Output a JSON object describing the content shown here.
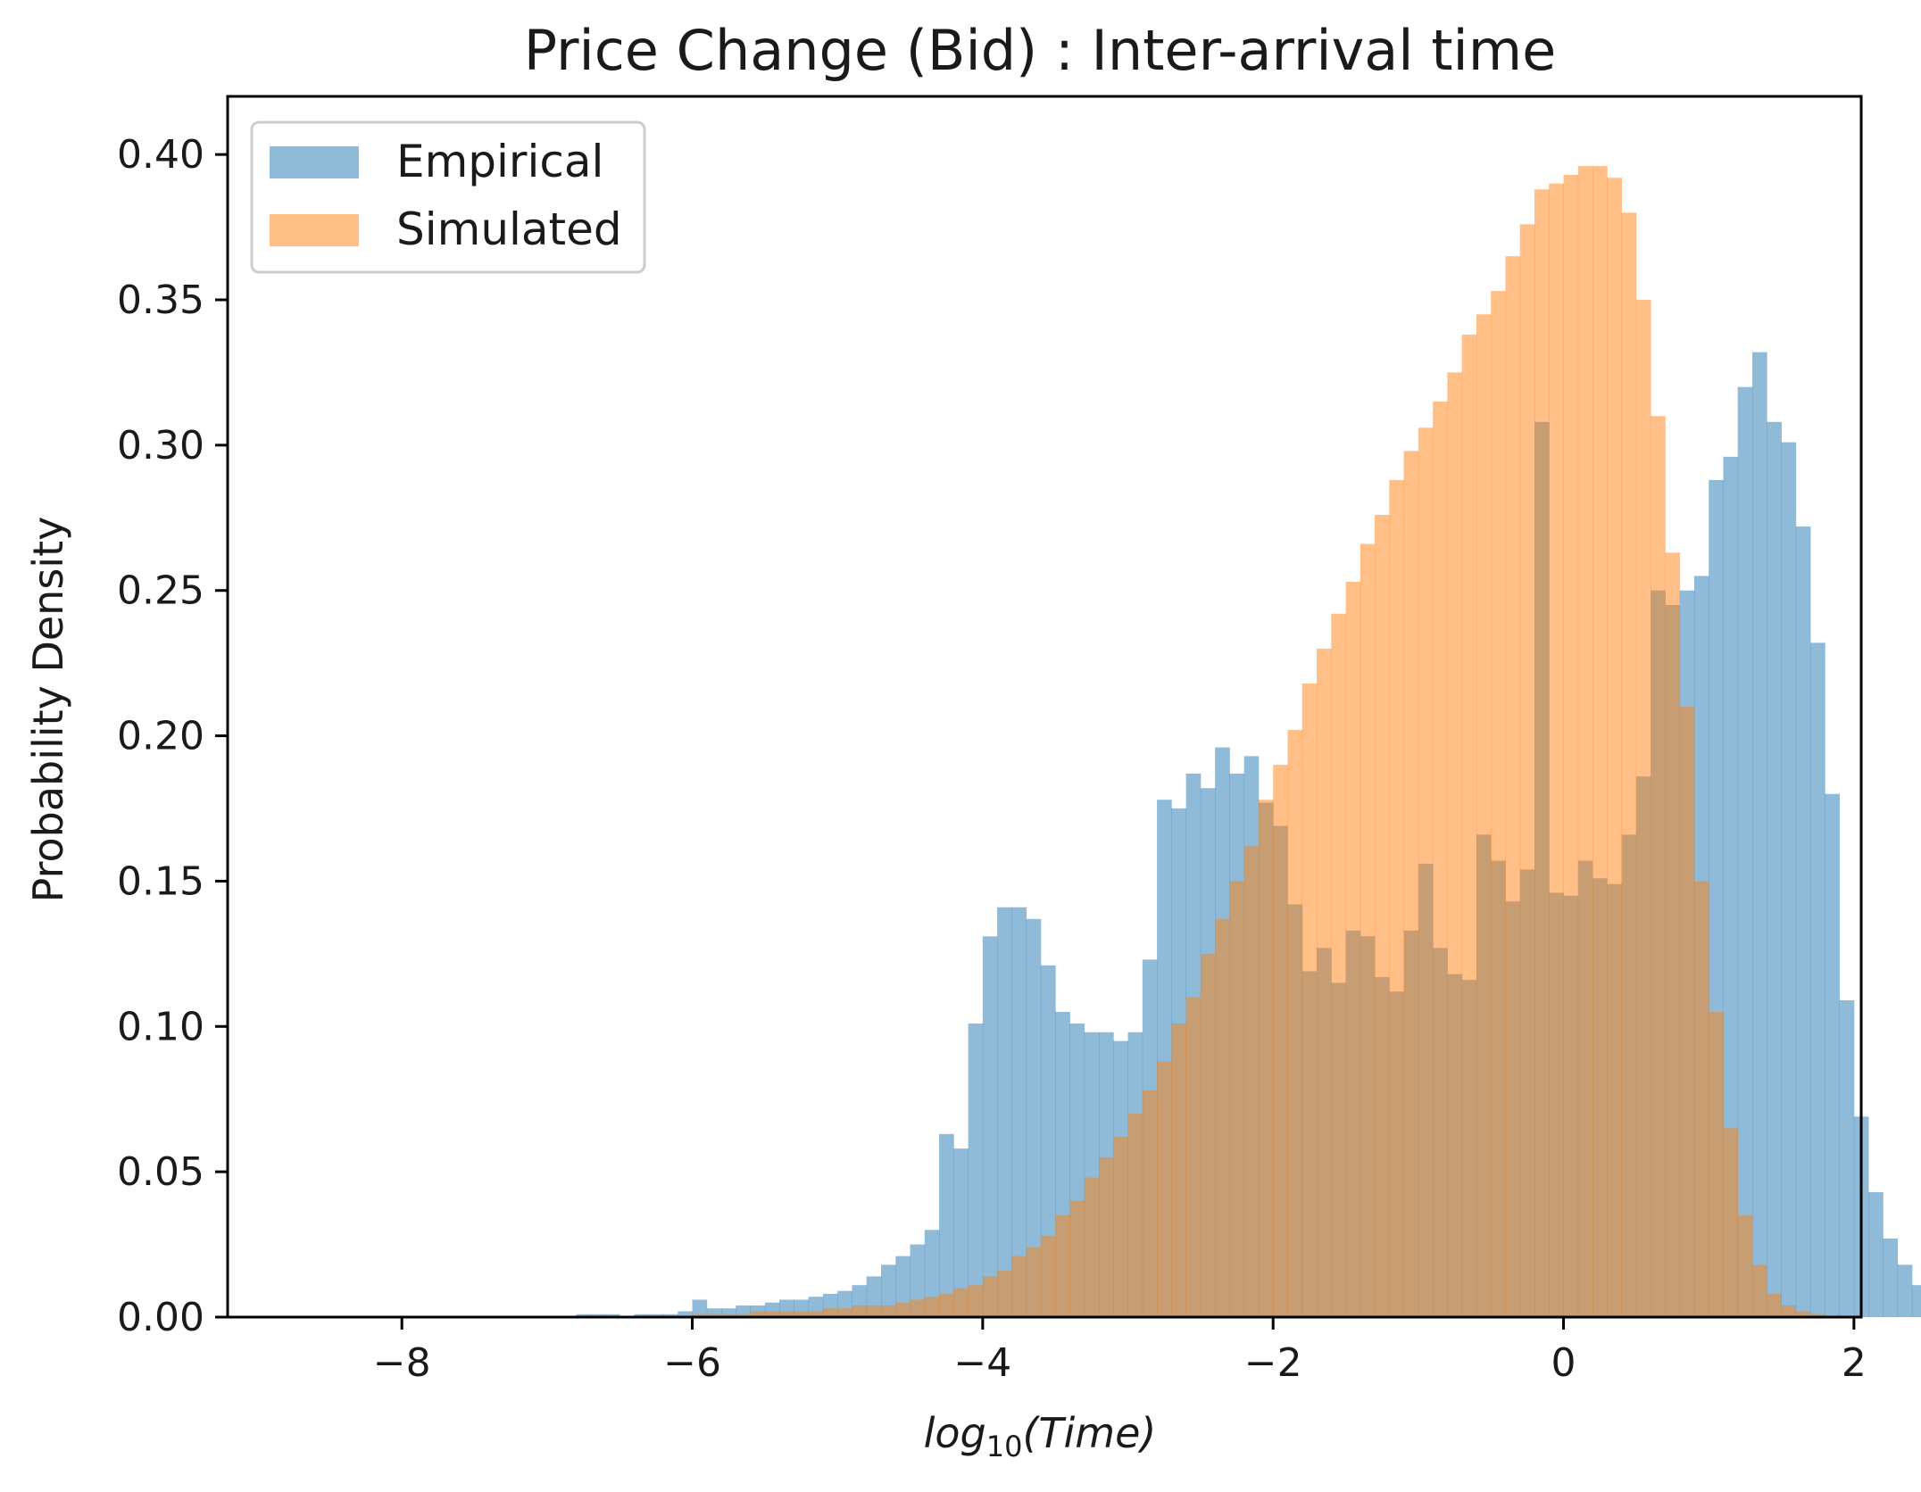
{
  "chart_data": {
    "type": "bar",
    "subtype": "overlaid-histogram",
    "title": "Price Change (Bid) : Inter-arrival time",
    "xlabel_prefix": "log",
    "xlabel_sub": "10",
    "xlabel_arg": "(Time)",
    "ylabel": "Probability Density",
    "xlim": [
      -9.2,
      2.05
    ],
    "ylim": [
      0,
      0.42
    ],
    "xticks": [
      -8,
      -6,
      -4,
      -2,
      0,
      2
    ],
    "xtick_labels": [
      "−8",
      "−6",
      "−4",
      "−2",
      "0",
      "2"
    ],
    "yticks": [
      0.0,
      0.05,
      0.1,
      0.15,
      0.2,
      0.25,
      0.3,
      0.35,
      0.4
    ],
    "ytick_labels": [
      "0.00",
      "0.05",
      "0.10",
      "0.15",
      "0.20",
      "0.25",
      "0.30",
      "0.35",
      "0.40"
    ],
    "grid": false,
    "legend_position": "top-left",
    "legend": [
      "Empirical",
      "Simulated"
    ],
    "bin_width": 0.1,
    "series": [
      {
        "name": "Empirical",
        "color": "#1f77b4",
        "opacity": 0.5,
        "bin_start": -6.8,
        "values": [
          0.001,
          0.001,
          0.001,
          0.0,
          0.001,
          0.001,
          0.001,
          0.002,
          0.006,
          0.003,
          0.003,
          0.004,
          0.004,
          0.005,
          0.006,
          0.006,
          0.007,
          0.008,
          0.009,
          0.011,
          0.014,
          0.018,
          0.021,
          0.025,
          0.03,
          0.063,
          0.058,
          0.101,
          0.131,
          0.141,
          0.141,
          0.137,
          0.121,
          0.105,
          0.101,
          0.098,
          0.098,
          0.095,
          0.098,
          0.123,
          0.178,
          0.175,
          0.187,
          0.182,
          0.196,
          0.187,
          0.193,
          0.177,
          0.169,
          0.142,
          0.119,
          0.127,
          0.115,
          0.133,
          0.131,
          0.117,
          0.112,
          0.133,
          0.156,
          0.127,
          0.118,
          0.116,
          0.166,
          0.157,
          0.143,
          0.154,
          0.308,
          0.146,
          0.145,
          0.157,
          0.151,
          0.149,
          0.166,
          0.186,
          0.25,
          0.245,
          0.25,
          0.255,
          0.288,
          0.296,
          0.32,
          0.332,
          0.308,
          0.301,
          0.272,
          0.232,
          0.18,
          0.109,
          0.069,
          0.043,
          0.027,
          0.018,
          0.011,
          0.006,
          0.003,
          0.002,
          0.001
        ]
      },
      {
        "name": "Simulated",
        "color": "#ff7f0e",
        "opacity": 0.5,
        "bin_start": -6.8,
        "values": [
          0.0,
          0.0,
          0.0,
          0.0,
          0.0,
          0.0,
          0.0,
          0.0,
          0.001,
          0.001,
          0.001,
          0.001,
          0.002,
          0.002,
          0.002,
          0.002,
          0.002,
          0.003,
          0.003,
          0.004,
          0.004,
          0.004,
          0.005,
          0.006,
          0.007,
          0.008,
          0.01,
          0.011,
          0.014,
          0.016,
          0.021,
          0.024,
          0.028,
          0.035,
          0.04,
          0.048,
          0.055,
          0.062,
          0.07,
          0.078,
          0.088,
          0.101,
          0.11,
          0.125,
          0.137,
          0.15,
          0.162,
          0.178,
          0.19,
          0.202,
          0.218,
          0.23,
          0.242,
          0.253,
          0.266,
          0.276,
          0.288,
          0.298,
          0.306,
          0.315,
          0.325,
          0.338,
          0.345,
          0.353,
          0.365,
          0.376,
          0.388,
          0.39,
          0.393,
          0.396,
          0.396,
          0.392,
          0.38,
          0.35,
          0.31,
          0.263,
          0.21,
          0.15,
          0.105,
          0.065,
          0.035,
          0.018,
          0.008,
          0.004,
          0.002,
          0.001,
          0.0,
          0.0,
          0.0,
          0.0,
          0.0,
          0.0,
          0.0,
          0.0,
          0.0,
          0.0,
          0.0
        ]
      }
    ]
  }
}
